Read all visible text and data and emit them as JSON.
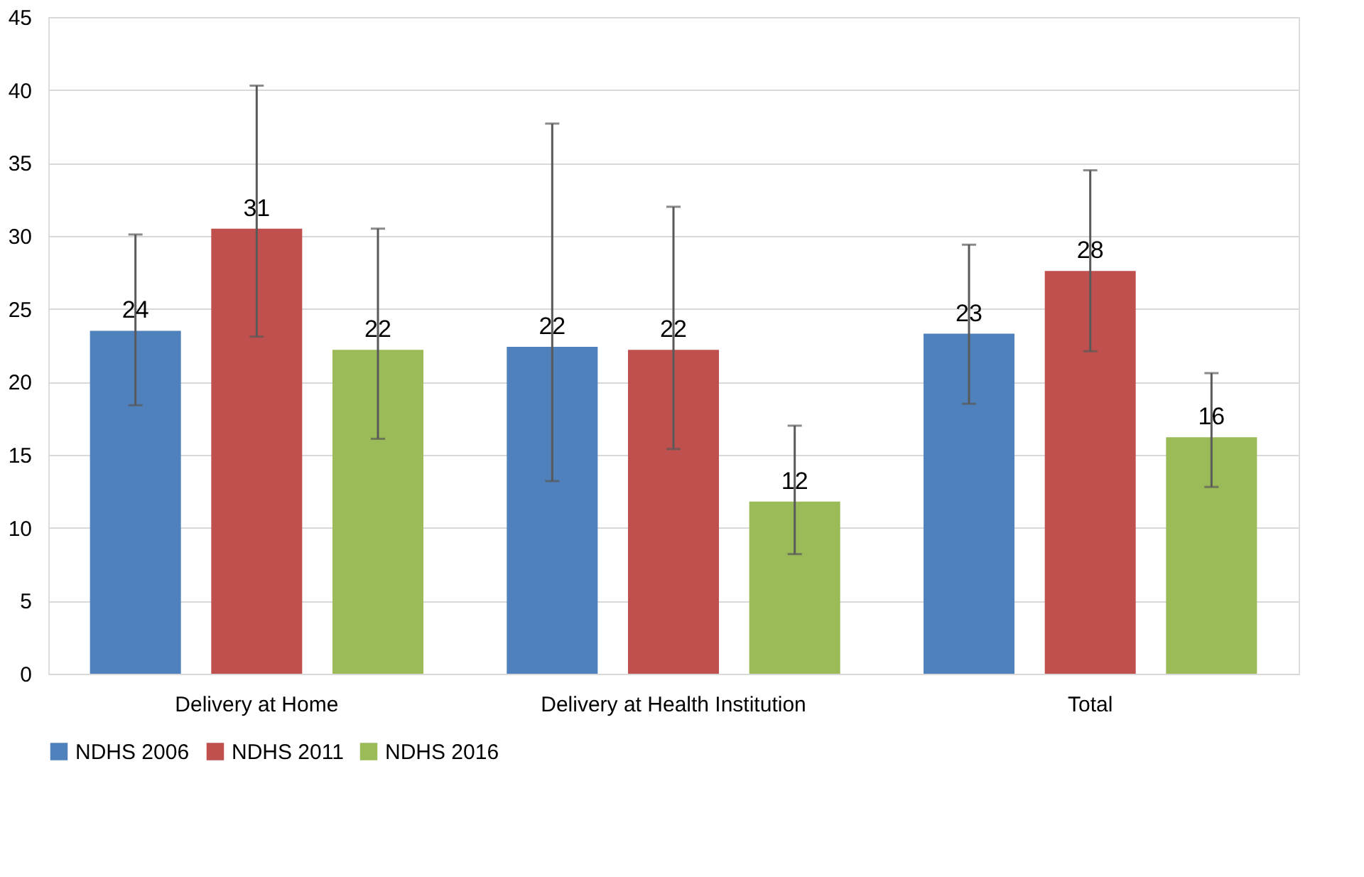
{
  "chart_data": {
    "type": "bar",
    "categories": [
      "Delivery at Home",
      "Delivery at Health Institution",
      "Total"
    ],
    "series": [
      {
        "name": "NDHS 2006",
        "color": "#4f81bd",
        "values": [
          23.5,
          22.4,
          23.3
        ],
        "errors": [
          [
            18.4,
            30.1
          ],
          [
            13.2,
            37.7
          ],
          [
            18.5,
            29.4
          ]
        ],
        "value_labels": [
          "24",
          "22",
          "23"
        ]
      },
      {
        "name": "NDHS 2011",
        "color": "#c0504d",
        "values": [
          30.5,
          22.2,
          27.6
        ],
        "errors": [
          [
            23.1,
            40.3
          ],
          [
            15.4,
            32.0
          ],
          [
            22.1,
            34.5
          ]
        ],
        "value_labels": [
          "31",
          "22",
          "28"
        ]
      },
      {
        "name": "NDHS 2016",
        "color": "#9bbb59",
        "values": [
          22.2,
          11.8,
          16.2
        ],
        "errors": [
          [
            16.1,
            30.5
          ],
          [
            8.2,
            17.0
          ],
          [
            12.8,
            20.6
          ]
        ],
        "value_labels": [
          "22",
          "12",
          "16"
        ]
      }
    ],
    "ylim": [
      0,
      45
    ],
    "yticks": [
      0,
      5,
      10,
      15,
      20,
      25,
      30,
      35,
      40,
      45
    ],
    "grid": "y",
    "legend": "bottom"
  }
}
